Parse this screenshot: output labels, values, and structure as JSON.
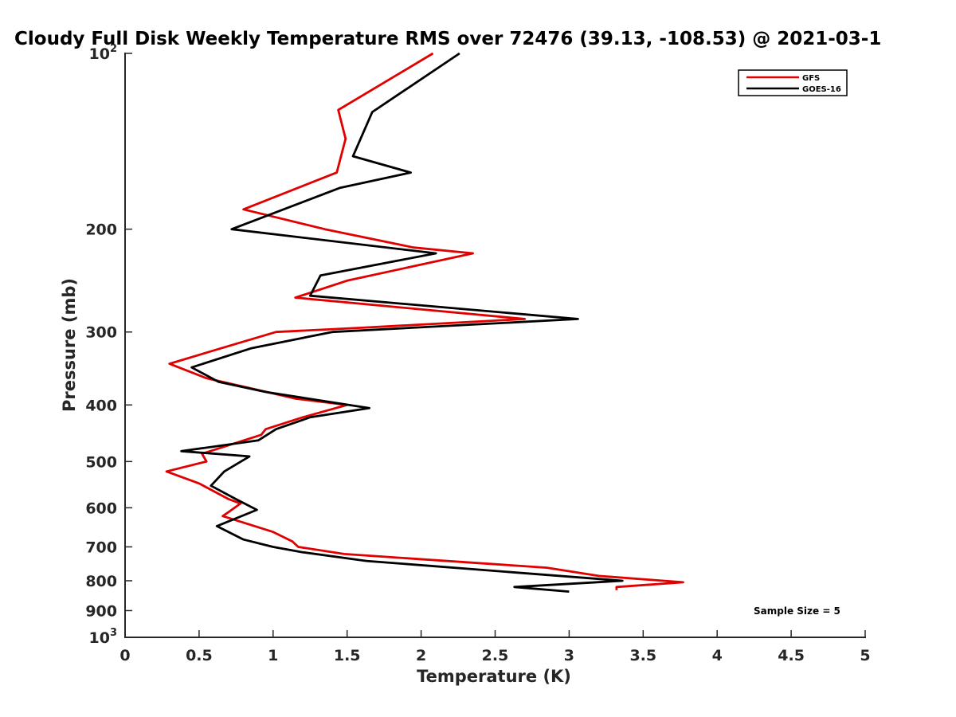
{
  "chart_data": {
    "type": "line",
    "title": "Cloudy Full Disk Weekly Temperature RMS over 72476 (39.13, -108.53) @ 2021-03-1",
    "xlabel": "Temperature (K)",
    "ylabel": "Pressure (mb)",
    "xlim": [
      0,
      5
    ],
    "ylim": [
      100,
      1000
    ],
    "y_scale": "log",
    "y_reversed": true,
    "grid": false,
    "legend_position": "top-right",
    "x_ticks": [
      "0",
      "0.5",
      "1",
      "1.5",
      "2",
      "2.5",
      "3",
      "3.5",
      "4",
      "4.5",
      "5"
    ],
    "y_ticks": [
      {
        "value": 100,
        "base": "10",
        "exp": "2"
      },
      {
        "value": 200,
        "label": "200"
      },
      {
        "value": 300,
        "label": "300"
      },
      {
        "value": 400,
        "label": "400"
      },
      {
        "value": 500,
        "label": "500"
      },
      {
        "value": 600,
        "label": "600"
      },
      {
        "value": 700,
        "label": "700"
      },
      {
        "value": 800,
        "label": "800"
      },
      {
        "value": 900,
        "label": "900"
      },
      {
        "value": 1000,
        "base": "10",
        "exp": "3"
      }
    ],
    "annotation": "Sample Size = 5",
    "series": [
      {
        "name": "GFS",
        "color": "#e00000",
        "points": [
          [
            2.08,
            100
          ],
          [
            1.44,
            125
          ],
          [
            1.49,
            140
          ],
          [
            1.43,
            160
          ],
          [
            0.8,
            185
          ],
          [
            1.35,
            200
          ],
          [
            1.95,
            215
          ],
          [
            2.35,
            220
          ],
          [
            1.5,
            245
          ],
          [
            1.15,
            262
          ],
          [
            2.7,
            285
          ],
          [
            1.6,
            295
          ],
          [
            1.02,
            300
          ],
          [
            0.7,
            317
          ],
          [
            0.3,
            340
          ],
          [
            0.55,
            360
          ],
          [
            1.15,
            390
          ],
          [
            1.5,
            400
          ],
          [
            1.2,
            420
          ],
          [
            0.95,
            440
          ],
          [
            0.92,
            450
          ],
          [
            0.52,
            485
          ],
          [
            0.55,
            500
          ],
          [
            0.28,
            520
          ],
          [
            0.5,
            545
          ],
          [
            0.7,
            580
          ],
          [
            0.78,
            590
          ],
          [
            0.7,
            610
          ],
          [
            0.66,
            620
          ],
          [
            1.0,
            660
          ],
          [
            1.13,
            685
          ],
          [
            1.17,
            700
          ],
          [
            1.48,
            720
          ],
          [
            2.85,
            760
          ],
          [
            3.2,
            785
          ],
          [
            3.77,
            805
          ],
          [
            3.32,
            820
          ],
          [
            3.32,
            830
          ]
        ]
      },
      {
        "name": "GOES-16",
        "color": "#000000",
        "points": [
          [
            2.26,
            100
          ],
          [
            1.67,
            126
          ],
          [
            1.54,
            150
          ],
          [
            1.93,
            160
          ],
          [
            1.45,
            170
          ],
          [
            0.72,
            200
          ],
          [
            2.1,
            220
          ],
          [
            1.32,
            240
          ],
          [
            1.25,
            260
          ],
          [
            3.06,
            285
          ],
          [
            1.4,
            300
          ],
          [
            0.85,
            320
          ],
          [
            0.45,
            345
          ],
          [
            0.63,
            365
          ],
          [
            0.95,
            380
          ],
          [
            1.65,
            405
          ],
          [
            1.25,
            420
          ],
          [
            1.02,
            440
          ],
          [
            0.9,
            460
          ],
          [
            0.38,
            480
          ],
          [
            0.84,
            490
          ],
          [
            0.67,
            520
          ],
          [
            0.58,
            550
          ],
          [
            0.75,
            580
          ],
          [
            0.89,
            605
          ],
          [
            0.62,
            645
          ],
          [
            0.8,
            680
          ],
          [
            1.0,
            700
          ],
          [
            1.2,
            715
          ],
          [
            1.63,
            740
          ],
          [
            3.36,
            800
          ],
          [
            2.63,
            820
          ],
          [
            3.0,
            835
          ]
        ]
      }
    ]
  }
}
